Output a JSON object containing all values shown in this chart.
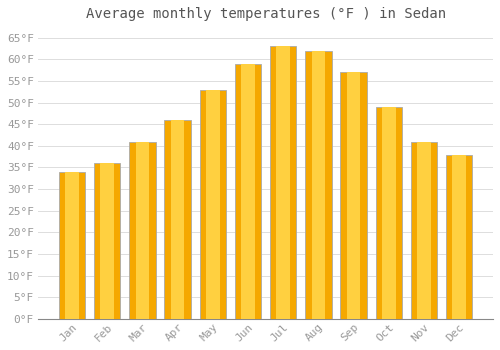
{
  "title": "Average monthly temperatures (°F ) in Sedan",
  "months": [
    "Jan",
    "Feb",
    "Mar",
    "Apr",
    "May",
    "Jun",
    "Jul",
    "Aug",
    "Sep",
    "Oct",
    "Nov",
    "Dec"
  ],
  "values": [
    34,
    36,
    41,
    46,
    53,
    59,
    63,
    62,
    57,
    49,
    41,
    38
  ],
  "bar_color_outer": "#F5A800",
  "bar_color_inner": "#FFD040",
  "bar_edge_color": "#AAAAAA",
  "ylim": [
    0,
    67
  ],
  "yticks": [
    0,
    5,
    10,
    15,
    20,
    25,
    30,
    35,
    40,
    45,
    50,
    55,
    60,
    65
  ],
  "ytick_labels": [
    "0°F",
    "5°F",
    "10°F",
    "15°F",
    "20°F",
    "25°F",
    "30°F",
    "35°F",
    "40°F",
    "45°F",
    "50°F",
    "55°F",
    "60°F",
    "65°F"
  ],
  "bg_color": "#ffffff",
  "grid_color": "#dddddd",
  "title_fontsize": 10,
  "tick_fontsize": 8,
  "tick_color": "#999999",
  "title_color": "#555555",
  "font_family": "monospace",
  "bar_width": 0.75
}
